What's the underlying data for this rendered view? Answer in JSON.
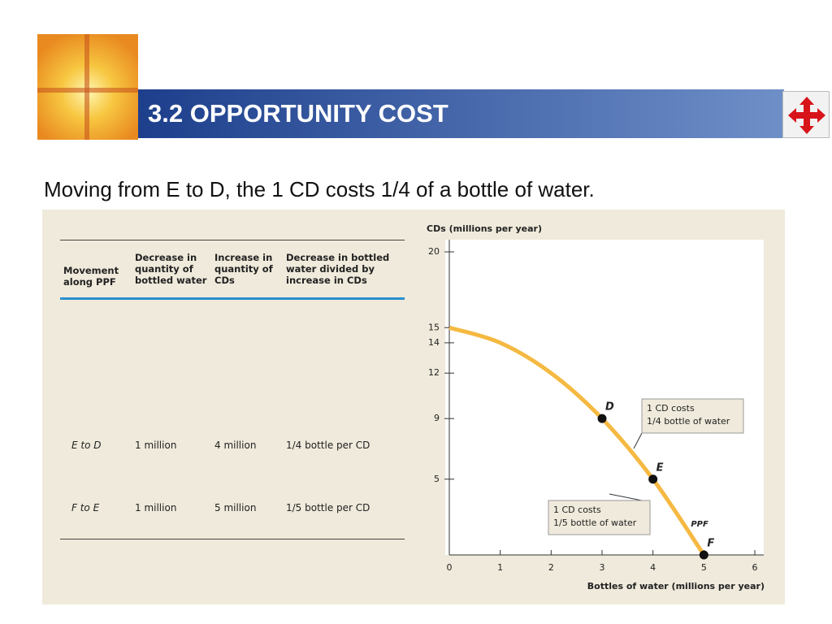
{
  "header": {
    "title": "3.2 OPPORTUNITY COST"
  },
  "subtitle": "Moving from E to D, the 1 CD costs 1/4 of a bottle of water.",
  "table": {
    "columns": [
      "Movement along PPF",
      "Decrease in quantity of bottled water",
      "Increase in quantity of CDs",
      "Decrease in bottled water divided by increase in CDs"
    ],
    "rows": [
      [
        "E to D",
        "1 million",
        "4 million",
        "1/4 bottle per CD"
      ],
      [
        "F to E",
        "1 million",
        "5 million",
        "1/5 bottle per CD"
      ]
    ]
  },
  "chart_data": {
    "type": "line",
    "x_label": "Bottles of water (millions per year)",
    "y_label": "CDs (millions per year)",
    "x": [
      0,
      1,
      2,
      3,
      4,
      5
    ],
    "values": [
      15,
      14,
      12,
      9,
      5,
      0
    ],
    "labels": [
      null,
      null,
      null,
      "D",
      "E",
      "F"
    ],
    "color": "#f5b942",
    "xlim": [
      0,
      6
    ],
    "xticks": [
      0,
      1,
      2,
      3,
      4,
      5,
      6
    ],
    "ylim": [
      0,
      20
    ],
    "yticks": [
      5,
      9,
      12,
      14,
      15,
      20
    ],
    "curve_label": "PPF",
    "annotations": [
      [
        "1 CD costs",
        "1/4 bottle of water"
      ],
      [
        "1 CD costs",
        "1/5 bottle of water"
      ]
    ]
  }
}
